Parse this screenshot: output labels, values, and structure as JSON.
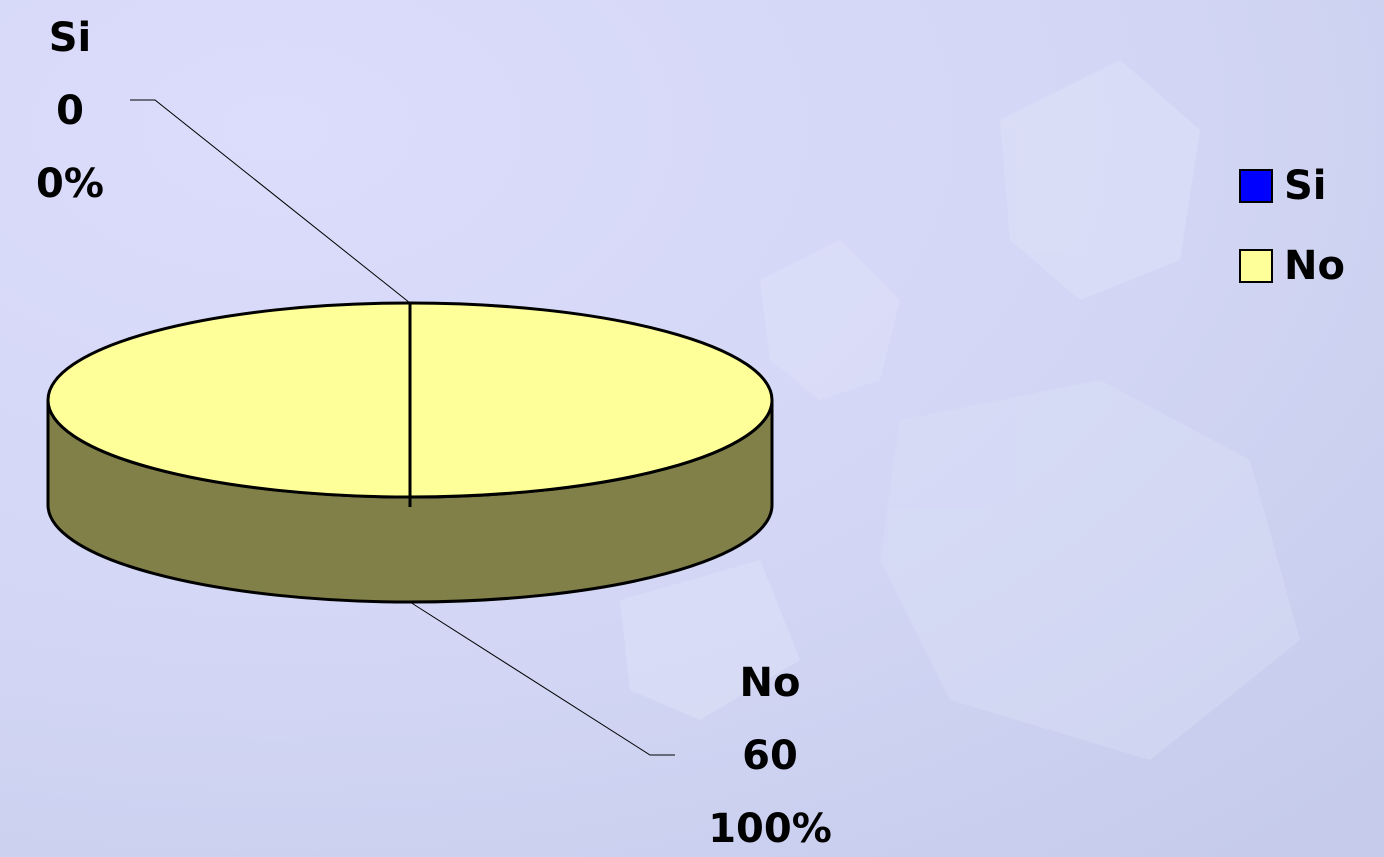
{
  "chart_data": {
    "type": "pie3d",
    "categories": [
      "Si",
      "No"
    ],
    "values": [
      0,
      60
    ],
    "percentages": [
      0,
      100
    ],
    "percentage_labels": [
      "0%",
      "100%"
    ],
    "colors": [
      "#0000ff",
      "#ffff99"
    ],
    "side_colors": [
      "#000080",
      "#808048"
    ],
    "legend": "right"
  }
}
